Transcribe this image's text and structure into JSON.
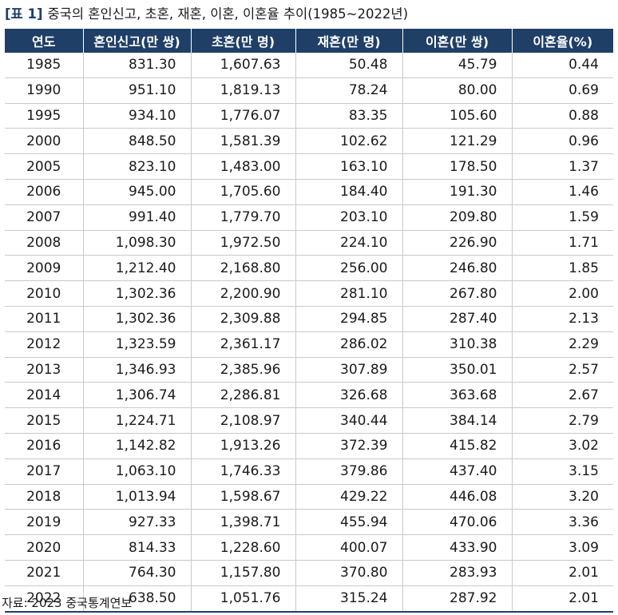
{
  "caption": {
    "label": "[표 1]",
    "text": "중국의 혼인신고, 초혼, 재혼, 이혼, 이혼율 추이(1985~2022년)"
  },
  "table": {
    "headers": [
      "연도",
      "혼인신고(만 쌍)",
      "초혼(만 명)",
      "재혼(만 명)",
      "이혼(만 쌍)",
      "이혼율(%)"
    ],
    "rows": [
      [
        "1985",
        "831.30",
        "1,607.63",
        "50.48",
        "45.79",
        "0.44"
      ],
      [
        "1990",
        "951.10",
        "1,819.13",
        "78.24",
        "80.00",
        "0.69"
      ],
      [
        "1995",
        "934.10",
        "1,776.07",
        "83.35",
        "105.60",
        "0.88"
      ],
      [
        "2000",
        "848.50",
        "1,581.39",
        "102.62",
        "121.29",
        "0.96"
      ],
      [
        "2005",
        "823.10",
        "1,483.00",
        "163.10",
        "178.50",
        "1.37"
      ],
      [
        "2006",
        "945.00",
        "1,705.60",
        "184.40",
        "191.30",
        "1.46"
      ],
      [
        "2007",
        "991.40",
        "1,779.70",
        "203.10",
        "209.80",
        "1.59"
      ],
      [
        "2008",
        "1,098.30",
        "1,972.50",
        "224.10",
        "226.90",
        "1.71"
      ],
      [
        "2009",
        "1,212.40",
        "2,168.80",
        "256.00",
        "246.80",
        "1.85"
      ],
      [
        "2010",
        "1,302.36",
        "2,200.90",
        "281.10",
        "267.80",
        "2.00"
      ],
      [
        "2011",
        "1,302.36",
        "2,309.88",
        "294.85",
        "287.40",
        "2.13"
      ],
      [
        "2012",
        "1,323.59",
        "2,361.17",
        "286.02",
        "310.38",
        "2.29"
      ],
      [
        "2013",
        "1,346.93",
        "2,385.96",
        "307.89",
        "350.01",
        "2.57"
      ],
      [
        "2014",
        "1,306.74",
        "2,286.81",
        "326.68",
        "363.68",
        "2.67"
      ],
      [
        "2015",
        "1,224.71",
        "2,108.97",
        "340.44",
        "384.14",
        "2.79"
      ],
      [
        "2016",
        "1,142.82",
        "1,913.26",
        "372.39",
        "415.82",
        "3.02"
      ],
      [
        "2017",
        "1,063.10",
        "1,746.33",
        "379.86",
        "437.40",
        "3.15"
      ],
      [
        "2018",
        "1,013.94",
        "1,598.67",
        "429.22",
        "446.08",
        "3.20"
      ],
      [
        "2019",
        "927.33",
        "1,398.71",
        "455.94",
        "470.06",
        "3.36"
      ],
      [
        "2020",
        "814.33",
        "1,228.60",
        "400.07",
        "433.90",
        "3.09"
      ],
      [
        "2021",
        "764.30",
        "1,157.80",
        "370.80",
        "283.93",
        "2.01"
      ],
      [
        "2022",
        "638.50",
        "1,051.76",
        "315.24",
        "287.92",
        "2.01"
      ]
    ]
  },
  "source": "자료: 2023 중국통계연보",
  "colors": {
    "header_bg": "#1f3f66",
    "header_text": "#ffffff",
    "grid": "#c9c9c9"
  }
}
